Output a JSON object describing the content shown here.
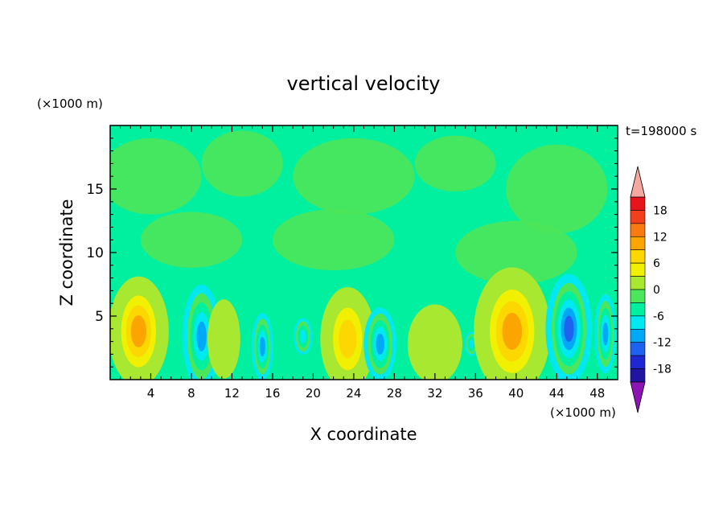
{
  "chart_data": {
    "type": "heatmap",
    "title": "vertical velocity",
    "xlabel": "X coordinate",
    "ylabel": "Z coordinate",
    "x_unit": "(×1000 m)",
    "y_unit": "(×1000 m)",
    "time_label": "t=198000 s",
    "xlim": [
      0,
      50
    ],
    "ylim": [
      0,
      20
    ],
    "x_ticks": [
      4,
      8,
      12,
      16,
      20,
      24,
      28,
      32,
      36,
      40,
      44,
      48
    ],
    "y_ticks": [
      5,
      10,
      15
    ],
    "colorbar": {
      "ticks": [
        18,
        12,
        6,
        0,
        -6,
        -12,
        -18
      ],
      "range": [
        -21,
        21
      ],
      "levels": [
        {
          "from": 18,
          "to": 21,
          "color": "#e8141c"
        },
        {
          "from": 15,
          "to": 18,
          "color": "#f2401c"
        },
        {
          "from": 12,
          "to": 15,
          "color": "#f87a10"
        },
        {
          "from": 9,
          "to": 12,
          "color": "#fba500"
        },
        {
          "from": 6,
          "to": 9,
          "color": "#fcd800"
        },
        {
          "from": 3,
          "to": 6,
          "color": "#f0f000"
        },
        {
          "from": 0,
          "to": 3,
          "color": "#a8e830"
        },
        {
          "from": -3,
          "to": 0,
          "color": "#4ce65a"
        },
        {
          "from": -6,
          "to": -3,
          "color": "#00f0a0"
        },
        {
          "from": -9,
          "to": -6,
          "color": "#00e8f0"
        },
        {
          "from": -12,
          "to": -9,
          "color": "#00a8f5"
        },
        {
          "from": -15,
          "to": -12,
          "color": "#1e62f0"
        },
        {
          "from": -18,
          "to": -15,
          "color": "#1e28d2"
        },
        {
          "from": -21,
          "to": -18,
          "color": "#2014a0"
        }
      ],
      "over_color": "#f4a8a0",
      "under_color": "#8c14b4"
    },
    "cells": [
      {
        "x": 2.8,
        "z": 3.8,
        "rx": 2.2,
        "rz": 3.6,
        "w": 11
      },
      {
        "x": 9.0,
        "z": 3.4,
        "rx": 1.4,
        "rz": 3.4,
        "w": -13
      },
      {
        "x": 11.2,
        "z": 3.2,
        "rx": 1.2,
        "rz": 2.6,
        "w": 4
      },
      {
        "x": 15.0,
        "z": 2.6,
        "rx": 0.8,
        "rz": 2.2,
        "w": -13
      },
      {
        "x": 19.0,
        "z": 3.4,
        "rx": 0.7,
        "rz": 1.2,
        "w": -10
      },
      {
        "x": 23.4,
        "z": 3.2,
        "rx": 2.0,
        "rz": 3.4,
        "w": 9
      },
      {
        "x": 26.6,
        "z": 2.8,
        "rx": 1.2,
        "rz": 2.4,
        "w": -12
      },
      {
        "x": 32.0,
        "z": 2.8,
        "rx": 2.0,
        "rz": 2.6,
        "w": 3
      },
      {
        "x": 35.6,
        "z": 2.8,
        "rx": 0.5,
        "rz": 0.8,
        "w": -9
      },
      {
        "x": 39.6,
        "z": 3.8,
        "rx": 2.8,
        "rz": 4.2,
        "w": 12
      },
      {
        "x": 45.2,
        "z": 4.0,
        "rx": 1.7,
        "rz": 3.6,
        "w": -15
      },
      {
        "x": 48.8,
        "z": 3.6,
        "rx": 0.8,
        "rz": 2.6,
        "w": -11
      }
    ]
  }
}
